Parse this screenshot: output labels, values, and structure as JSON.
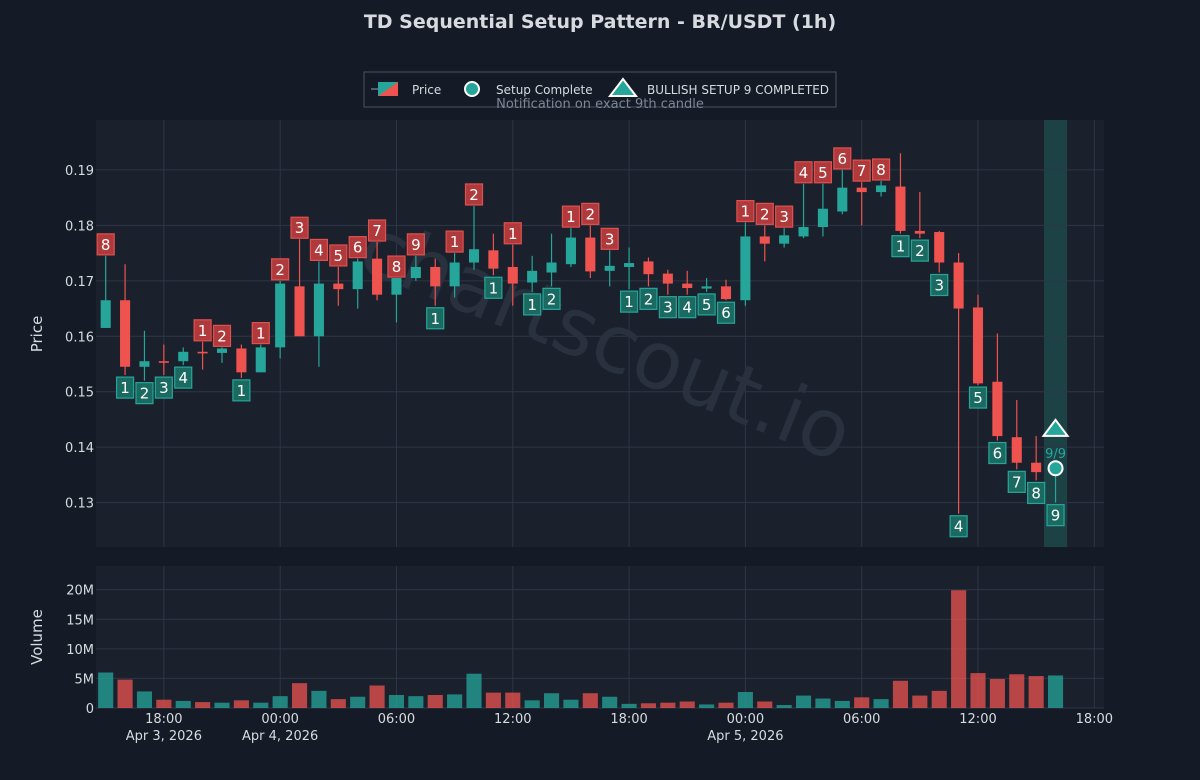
{
  "chart_data": {
    "type": "candlestick",
    "title": "TD Sequential Setup Pattern - BR/USDT (1h)",
    "price_axis": {
      "label": "Price",
      "ylim": [
        0.122,
        0.199
      ],
      "ticks": [
        0.13,
        0.14,
        0.15,
        0.16,
        0.17,
        0.18,
        0.19
      ],
      "tick_labels": [
        "0.13",
        "0.14",
        "0.15",
        "0.16",
        "0.17",
        "0.18",
        "0.19"
      ]
    },
    "volume_axis": {
      "label": "Volume",
      "ylim": [
        0,
        24000000
      ],
      "ticks": [
        0,
        5000000,
        10000000,
        15000000,
        20000000
      ],
      "tick_labels": [
        "0",
        "5M",
        "10M",
        "15M",
        "20M"
      ]
    },
    "x_axis": {
      "range": [
        "2026-04-03T14:30",
        "2026-04-05T18:30"
      ],
      "ticks": [
        {
          "time": "2026-04-03T18:00",
          "label": "18:00",
          "date": "Apr 3, 2026"
        },
        {
          "time": "2026-04-04T00:00",
          "label": "00:00",
          "date": "Apr 4, 2026"
        },
        {
          "time": "2026-04-04T06:00",
          "label": "06:00",
          "date": ""
        },
        {
          "time": "2026-04-04T12:00",
          "label": "12:00",
          "date": ""
        },
        {
          "time": "2026-04-04T18:00",
          "label": "18:00",
          "date": ""
        },
        {
          "time": "2026-04-05T00:00",
          "label": "00:00",
          "date": "Apr 5, 2026"
        },
        {
          "time": "2026-04-05T06:00",
          "label": "06:00",
          "date": ""
        },
        {
          "time": "2026-04-05T12:00",
          "label": "12:00",
          "date": ""
        },
        {
          "time": "2026-04-05T18:00",
          "label": "18:00",
          "date": ""
        }
      ]
    },
    "legend": {
      "placement": "top-center",
      "items": [
        {
          "kind": "candle",
          "label": "Price"
        },
        {
          "kind": "circle",
          "label": "Setup Complete"
        },
        {
          "kind": "triangle",
          "label": "BULLISH SETUP 9 COMPLETED"
        }
      ],
      "note": "Notification on exact 9th candle"
    },
    "grid": true,
    "watermark": "chartscout.io",
    "colors": {
      "background": "#151b26",
      "plot_bg": "#1a202c",
      "up": "#26a69a",
      "down": "#ef5350",
      "grid": "#2e3645",
      "text": "#d7dbe0",
      "highlight": "#1d4d4f"
    },
    "start_time": "2026-04-03T15:00",
    "interval": "1h",
    "candles": [
      {
        "o": 0.1615,
        "h": 0.1745,
        "l": 0.1615,
        "c": 0.1665,
        "v": 6000000,
        "buy": "",
        "sell": "8"
      },
      {
        "o": 0.1665,
        "h": 0.173,
        "l": 0.153,
        "c": 0.1545,
        "v": 4800000,
        "buy": "1",
        "sell": ""
      },
      {
        "o": 0.1545,
        "h": 0.161,
        "l": 0.152,
        "c": 0.1555,
        "v": 2800000,
        "buy": "2",
        "sell": ""
      },
      {
        "o": 0.1555,
        "h": 0.1585,
        "l": 0.153,
        "c": 0.1553,
        "v": 1400000,
        "buy": "3",
        "sell": ""
      },
      {
        "o": 0.1555,
        "h": 0.158,
        "l": 0.1548,
        "c": 0.1572,
        "v": 1200000,
        "buy": "4",
        "sell": ""
      },
      {
        "o": 0.1572,
        "h": 0.159,
        "l": 0.154,
        "c": 0.157,
        "v": 1000000,
        "buy": "",
        "sell": "1"
      },
      {
        "o": 0.157,
        "h": 0.158,
        "l": 0.1552,
        "c": 0.1578,
        "v": 900000,
        "buy": "",
        "sell": "2"
      },
      {
        "o": 0.1578,
        "h": 0.1585,
        "l": 0.1525,
        "c": 0.1535,
        "v": 1300000,
        "buy": "1",
        "sell": ""
      },
      {
        "o": 0.1535,
        "h": 0.1585,
        "l": 0.1535,
        "c": 0.158,
        "v": 900000,
        "buy": "",
        "sell": "1"
      },
      {
        "o": 0.158,
        "h": 0.17,
        "l": 0.156,
        "c": 0.1695,
        "v": 2000000,
        "buy": "",
        "sell": "2"
      },
      {
        "o": 0.169,
        "h": 0.1775,
        "l": 0.16,
        "c": 0.16,
        "v": 4200000,
        "buy": "",
        "sell": "3"
      },
      {
        "o": 0.16,
        "h": 0.1735,
        "l": 0.1545,
        "c": 0.1695,
        "v": 2900000,
        "buy": "",
        "sell": "4"
      },
      {
        "o": 0.1695,
        "h": 0.1725,
        "l": 0.1655,
        "c": 0.1685,
        "v": 1500000,
        "buy": "",
        "sell": "5"
      },
      {
        "o": 0.1685,
        "h": 0.174,
        "l": 0.165,
        "c": 0.1735,
        "v": 1900000,
        "buy": "",
        "sell": "6"
      },
      {
        "o": 0.174,
        "h": 0.177,
        "l": 0.1665,
        "c": 0.1675,
        "v": 3800000,
        "buy": "",
        "sell": "7"
      },
      {
        "o": 0.1675,
        "h": 0.1705,
        "l": 0.1625,
        "c": 0.1705,
        "v": 2200000,
        "buy": "",
        "sell": "8"
      },
      {
        "o": 0.1705,
        "h": 0.1745,
        "l": 0.17,
        "c": 0.1725,
        "v": 2000000,
        "buy": "",
        "sell": "9"
      },
      {
        "o": 0.1725,
        "h": 0.174,
        "l": 0.1655,
        "c": 0.169,
        "v": 2200000,
        "buy": "1",
        "sell": ""
      },
      {
        "o": 0.169,
        "h": 0.175,
        "l": 0.167,
        "c": 0.1733,
        "v": 2300000,
        "buy": "",
        "sell": "1"
      },
      {
        "o": 0.1733,
        "h": 0.1835,
        "l": 0.172,
        "c": 0.1757,
        "v": 5800000,
        "buy": "",
        "sell": "2"
      },
      {
        "o": 0.1755,
        "h": 0.1785,
        "l": 0.171,
        "c": 0.1722,
        "v": 2600000,
        "buy": "1",
        "sell": ""
      },
      {
        "o": 0.1725,
        "h": 0.1765,
        "l": 0.1655,
        "c": 0.1695,
        "v": 2600000,
        "buy": "",
        "sell": "1"
      },
      {
        "o": 0.1697,
        "h": 0.1745,
        "l": 0.168,
        "c": 0.1718,
        "v": 1300000,
        "buy": "1",
        "sell": ""
      },
      {
        "o": 0.1715,
        "h": 0.1785,
        "l": 0.169,
        "c": 0.1733,
        "v": 2500000,
        "buy": "2",
        "sell": ""
      },
      {
        "o": 0.173,
        "h": 0.1795,
        "l": 0.1725,
        "c": 0.1778,
        "v": 1400000,
        "buy": "",
        "sell": "1"
      },
      {
        "o": 0.1778,
        "h": 0.18,
        "l": 0.1705,
        "c": 0.1717,
        "v": 2500000,
        "buy": "",
        "sell": "2"
      },
      {
        "o": 0.1718,
        "h": 0.1755,
        "l": 0.169,
        "c": 0.1727,
        "v": 1900000,
        "buy": "",
        "sell": "3"
      },
      {
        "o": 0.1725,
        "h": 0.176,
        "l": 0.1685,
        "c": 0.1732,
        "v": 700000,
        "buy": "1",
        "sell": ""
      },
      {
        "o": 0.1735,
        "h": 0.1742,
        "l": 0.169,
        "c": 0.1712,
        "v": 800000,
        "buy": "2",
        "sell": ""
      },
      {
        "o": 0.1713,
        "h": 0.172,
        "l": 0.1675,
        "c": 0.1695,
        "v": 900000,
        "buy": "3",
        "sell": ""
      },
      {
        "o": 0.1695,
        "h": 0.1718,
        "l": 0.1675,
        "c": 0.1687,
        "v": 1100000,
        "buy": "4",
        "sell": ""
      },
      {
        "o": 0.1686,
        "h": 0.1705,
        "l": 0.168,
        "c": 0.169,
        "v": 600000,
        "buy": "5",
        "sell": ""
      },
      {
        "o": 0.169,
        "h": 0.1702,
        "l": 0.1665,
        "c": 0.1667,
        "v": 900000,
        "buy": "6",
        "sell": ""
      },
      {
        "o": 0.1665,
        "h": 0.1805,
        "l": 0.1655,
        "c": 0.178,
        "v": 2700000,
        "buy": "",
        "sell": "1"
      },
      {
        "o": 0.178,
        "h": 0.18,
        "l": 0.1735,
        "c": 0.1767,
        "v": 1100000,
        "buy": "",
        "sell": "2"
      },
      {
        "o": 0.1767,
        "h": 0.1795,
        "l": 0.176,
        "c": 0.1782,
        "v": 500000,
        "buy": "",
        "sell": "3"
      },
      {
        "o": 0.178,
        "h": 0.1875,
        "l": 0.1777,
        "c": 0.1797,
        "v": 2100000,
        "buy": "",
        "sell": "4"
      },
      {
        "o": 0.1797,
        "h": 0.1875,
        "l": 0.178,
        "c": 0.183,
        "v": 1600000,
        "buy": "",
        "sell": "5"
      },
      {
        "o": 0.1825,
        "h": 0.19,
        "l": 0.182,
        "c": 0.1868,
        "v": 1200000,
        "buy": "",
        "sell": "6"
      },
      {
        "o": 0.1868,
        "h": 0.1878,
        "l": 0.18,
        "c": 0.186,
        "v": 1800000,
        "buy": "",
        "sell": "7"
      },
      {
        "o": 0.186,
        "h": 0.188,
        "l": 0.1852,
        "c": 0.1872,
        "v": 1500000,
        "buy": "",
        "sell": "8"
      },
      {
        "o": 0.187,
        "h": 0.193,
        "l": 0.1785,
        "c": 0.179,
        "v": 4600000,
        "buy": "1",
        "sell": ""
      },
      {
        "o": 0.179,
        "h": 0.186,
        "l": 0.1777,
        "c": 0.1785,
        "v": 2100000,
        "buy": "2",
        "sell": ""
      },
      {
        "o": 0.1788,
        "h": 0.179,
        "l": 0.1715,
        "c": 0.1733,
        "v": 2900000,
        "buy": "3",
        "sell": ""
      },
      {
        "o": 0.1733,
        "h": 0.175,
        "l": 0.128,
        "c": 0.165,
        "v": 19900000,
        "buy": "4",
        "sell": ""
      },
      {
        "o": 0.1652,
        "h": 0.1675,
        "l": 0.1512,
        "c": 0.1515,
        "v": 5900000,
        "buy": "5",
        "sell": ""
      },
      {
        "o": 0.1518,
        "h": 0.1605,
        "l": 0.1412,
        "c": 0.142,
        "v": 4900000,
        "buy": "6",
        "sell": ""
      },
      {
        "o": 0.1418,
        "h": 0.1485,
        "l": 0.136,
        "c": 0.1372,
        "v": 5700000,
        "buy": "7",
        "sell": ""
      },
      {
        "o": 0.1372,
        "h": 0.142,
        "l": 0.134,
        "c": 0.1355,
        "v": 5400000,
        "buy": "8",
        "sell": ""
      },
      {
        "o": 0.1355,
        "h": 0.1375,
        "l": 0.13,
        "c": 0.1362,
        "v": 5500000,
        "buy": "9",
        "sell": ""
      }
    ],
    "setup_complete": {
      "index": 49,
      "price": 0.1362,
      "triangle_price": 0.1433,
      "label": "9/9"
    }
  }
}
